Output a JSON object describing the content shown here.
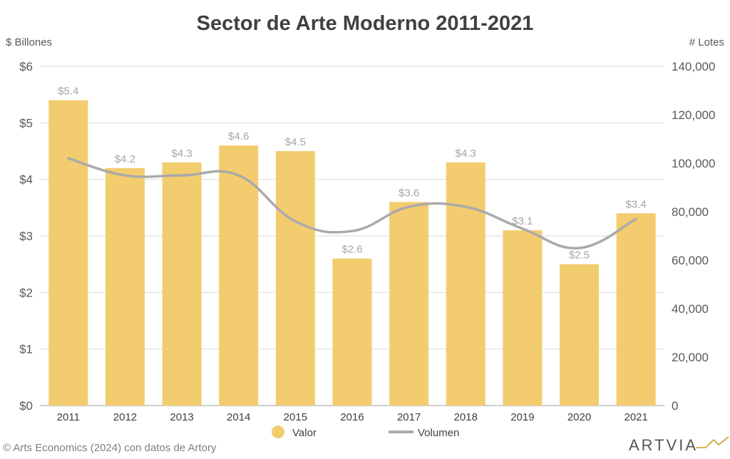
{
  "chart_data": {
    "type": "bar",
    "title": "Sector de Arte Moderno 2011-2021",
    "ylabel": "$ Billones",
    "y2label": "# Lotes",
    "categories": [
      "2011",
      "2012",
      "2013",
      "2014",
      "2015",
      "2016",
      "2017",
      "2018",
      "2019",
      "2020",
      "2021"
    ],
    "series": [
      {
        "name": "Valor",
        "type": "bar",
        "axis": "left",
        "color": "#F2CC6F",
        "values": [
          5.4,
          4.2,
          4.3,
          4.6,
          4.5,
          2.6,
          3.6,
          4.3,
          3.1,
          2.5,
          3.4
        ],
        "labels": [
          "$5.4",
          "$4.2",
          "$4.3",
          "$4.6",
          "$4.5",
          "$2.6",
          "$3.6",
          "$4.3",
          "$3.1",
          "$2.5",
          "$3.4"
        ]
      },
      {
        "name": "Volumen",
        "type": "line",
        "axis": "right",
        "color": "#AAAAAA",
        "values": [
          102000,
          95000,
          95000,
          95000,
          76000,
          72000,
          82000,
          82000,
          73000,
          65000,
          77000
        ]
      }
    ],
    "ylim": [
      0,
      6
    ],
    "y2lim": [
      0,
      140000
    ],
    "yticks": [
      "$0",
      "$1",
      "$2",
      "$3",
      "$4",
      "$5",
      "$6"
    ],
    "y2ticks": [
      "0",
      "20,000",
      "40,000",
      "60,000",
      "80,000",
      "100,000",
      "120,000",
      "140,000"
    ],
    "grid": true,
    "legend_placement": "bottom-center"
  },
  "source": "©  Arts Economics (2024) con datos de Artory",
  "logo": "ARTVIA"
}
